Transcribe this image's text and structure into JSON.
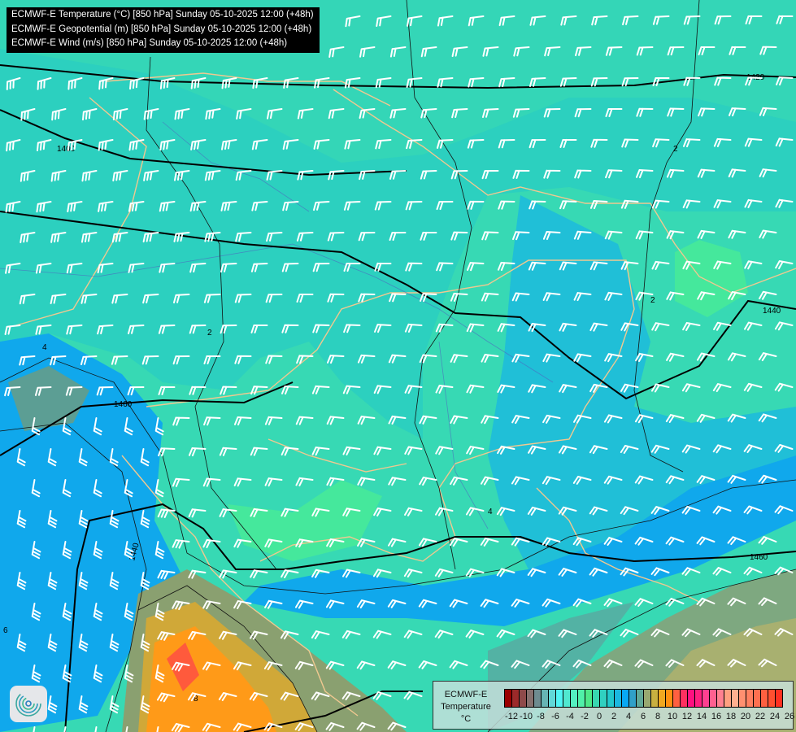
{
  "title_lines": [
    "ECMWF-E Temperature (°C) [850 hPa] Sunday 05-10-2025 12:00 (+48h)",
    "ECMWF-E Geopotential (m) [850 hPa] Sunday 05-10-2025 12:00 (+48h)",
    "ECMWF-E Wind (m/s) [850 hPa] Sunday 05-10-2025 12:00 (+48h)"
  ],
  "legend": {
    "line1": "ECMWF-E",
    "line2": "Temperature",
    "line3": "°C",
    "ticks": [
      "-12",
      "-10",
      "-8",
      "-6",
      "-4",
      "-2",
      "0",
      "2",
      "4",
      "6",
      "8",
      "10",
      "12",
      "14",
      "16",
      "18",
      "20",
      "22",
      "24",
      "26"
    ],
    "colors": [
      "#9a0000",
      "#9c2a2a",
      "#8e4a4a",
      "#86706e",
      "#6e8c90",
      "#66b4b4",
      "#60d8d8",
      "#50f4f4",
      "#50e8d0",
      "#54f0c0",
      "#50f0a8",
      "#4ee888",
      "#38d8b0",
      "#30d0c0",
      "#22c8cc",
      "#1ab8e0",
      "#08a8f4",
      "#30a0c8",
      "#60a898",
      "#98a870",
      "#c8b040",
      "#f0a820",
      "#ff9010",
      "#ff6040",
      "#ff3060",
      "#ff1080",
      "#ff2080",
      "#ff4090",
      "#ff6090",
      "#ff8090",
      "#ffa080",
      "#ffb090",
      "#ff9070",
      "#ff8060",
      "#ff7050",
      "#ff6040",
      "#ff5030",
      "#ff3020"
    ]
  },
  "geopotential_labels": [
    "1400",
    "1420",
    "1440",
    "1440",
    "1460",
    "1460",
    "1440"
  ],
  "isotherm_labels": [
    "2",
    "2",
    "2",
    "4",
    "4",
    "6",
    "8"
  ],
  "logo": "ECMWF-E"
}
